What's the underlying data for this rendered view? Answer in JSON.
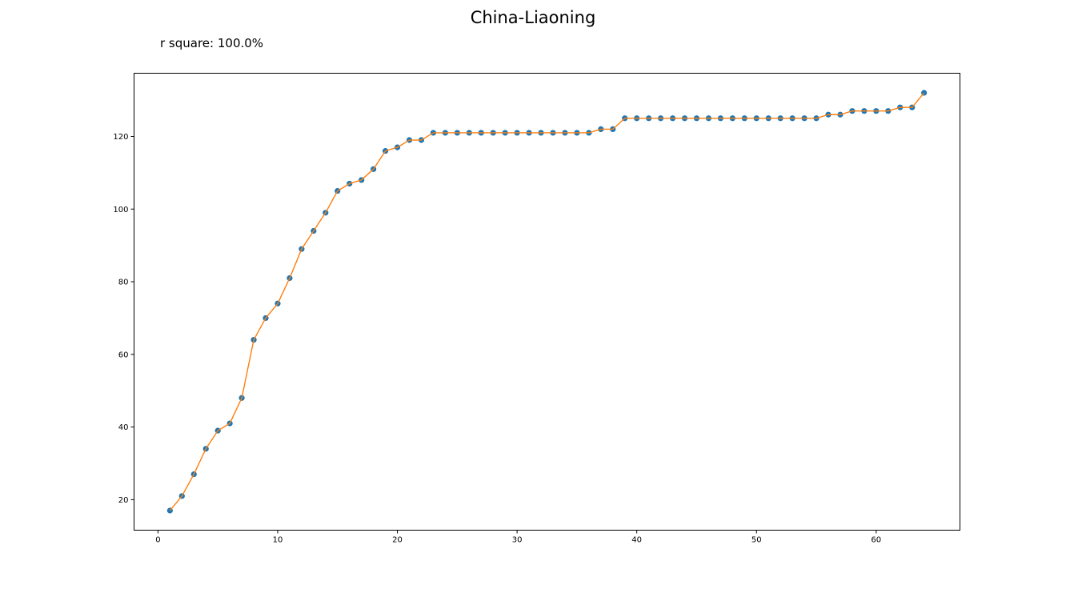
{
  "chart_data": {
    "type": "line",
    "title": "China-Liaoning",
    "annotation": "r square: 100.0%",
    "xlabel": "",
    "ylabel": "",
    "xlim": [
      -2,
      67
    ],
    "ylim": [
      11.6,
      137.4
    ],
    "xticks": [
      0,
      10,
      20,
      30,
      40,
      50,
      60
    ],
    "yticks": [
      20,
      40,
      60,
      80,
      100,
      120
    ],
    "grid": false,
    "colors": {
      "points": "#1f77b4",
      "line": "#ff7f0e"
    },
    "series": [
      {
        "kind": "scatter+line",
        "x": [
          1,
          2,
          3,
          4,
          5,
          6,
          7,
          8,
          9,
          10,
          11,
          12,
          13,
          14,
          15,
          16,
          17,
          18,
          19,
          20,
          21,
          22,
          23,
          24,
          25,
          26,
          27,
          28,
          29,
          30,
          31,
          32,
          33,
          34,
          35,
          36,
          37,
          38,
          39,
          40,
          41,
          42,
          43,
          44,
          45,
          46,
          47,
          48,
          49,
          50,
          51,
          52,
          53,
          54,
          55,
          56,
          57,
          58,
          59,
          60,
          61,
          62,
          63,
          64
        ],
        "y": [
          17,
          21,
          27,
          34,
          39,
          41,
          48,
          64,
          70,
          74,
          81,
          89,
          94,
          99,
          105,
          107,
          108,
          111,
          116,
          117,
          119,
          119,
          121,
          121,
          121,
          121,
          121,
          121,
          121,
          121,
          121,
          121,
          121,
          121,
          121,
          121,
          122,
          122,
          125,
          125,
          125,
          125,
          125,
          125,
          125,
          125,
          125,
          125,
          125,
          125,
          125,
          125,
          125,
          125,
          125,
          126,
          126,
          127,
          127,
          127,
          127,
          128,
          128,
          132
        ]
      }
    ]
  }
}
